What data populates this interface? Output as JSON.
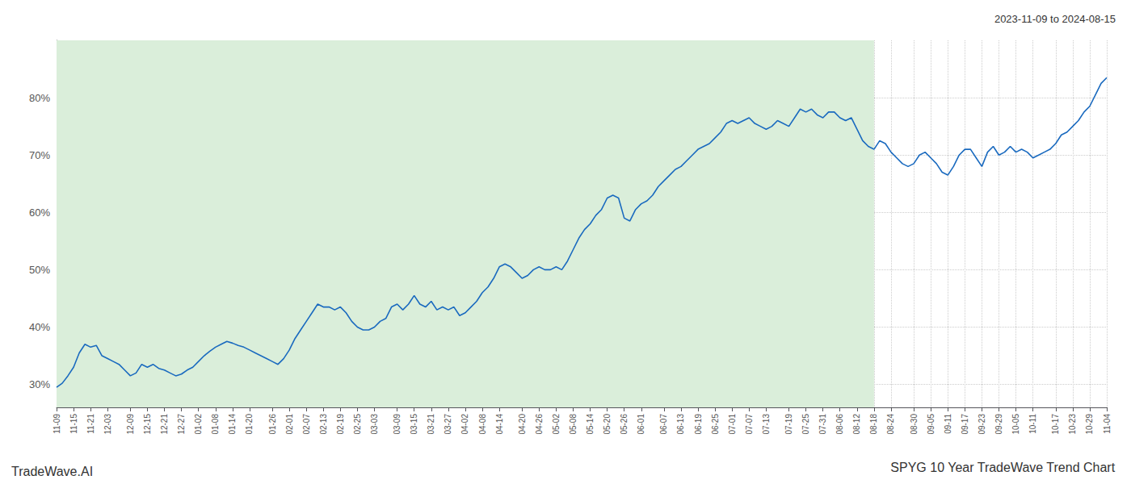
{
  "chart_data": {
    "type": "line",
    "title": "SPYG 10 Year TradeWave Trend Chart",
    "subtitle": "2023-11-09 to 2024-08-15",
    "annotations": [
      "TradeWave.AI"
    ],
    "categories": [
      "11-09",
      null,
      null,
      "11-15",
      null,
      null,
      "11-21",
      null,
      null,
      "12-03",
      null,
      null,
      null,
      "12-09",
      null,
      null,
      "12-15",
      null,
      null,
      "12-21",
      null,
      null,
      "12-27",
      null,
      null,
      "01-02",
      null,
      null,
      "01-08",
      null,
      null,
      "01-14",
      null,
      null,
      "01-20",
      null,
      null,
      null,
      "01-26",
      null,
      null,
      "02-01",
      null,
      null,
      "02-07",
      null,
      null,
      "02-13",
      null,
      null,
      "02-19",
      null,
      null,
      "02-25",
      null,
      null,
      "03-03",
      null,
      null,
      null,
      "03-09",
      null,
      null,
      "03-15",
      null,
      null,
      "03-21",
      null,
      null,
      "03-27",
      null,
      null,
      "04-02",
      null,
      null,
      "04-08",
      null,
      null,
      "04-14",
      null,
      null,
      null,
      "04-20",
      null,
      null,
      "04-26",
      null,
      null,
      "05-02",
      null,
      null,
      "05-08",
      null,
      null,
      "05-14",
      null,
      null,
      "05-20",
      null,
      null,
      "05-26",
      null,
      null,
      "06-01",
      null,
      null,
      null,
      "06-07",
      null,
      null,
      "06-13",
      null,
      null,
      "06-19",
      null,
      null,
      "06-25",
      null,
      null,
      "07-01",
      null,
      null,
      "07-07",
      null,
      null,
      "07-13",
      null,
      null,
      null,
      "07-19",
      null,
      null,
      "07-25",
      null,
      null,
      "07-31",
      null,
      null,
      "08-06",
      null,
      null,
      "08-12",
      null,
      null,
      "08-18",
      null,
      null,
      "08-24",
      null,
      null,
      null,
      "08-30",
      null,
      null,
      "09-05",
      null,
      null,
      "09-11",
      null,
      null,
      "09-17",
      null,
      null,
      "09-23",
      null,
      null,
      "09-29",
      null,
      null,
      "10-05",
      null,
      null,
      "10-11",
      null,
      null,
      null,
      "10-17",
      null,
      null,
      "10-23",
      null,
      null,
      "10-29",
      null,
      null,
      "11-04"
    ],
    "values": [
      29.5,
      30.2,
      31.5,
      33.0,
      35.5,
      37.0,
      36.5,
      36.8,
      35.0,
      34.5,
      34.0,
      33.5,
      32.5,
      31.5,
      32.0,
      33.5,
      33.0,
      33.5,
      32.8,
      32.5,
      32.0,
      31.5,
      31.8,
      32.5,
      33.0,
      34.0,
      35.0,
      35.8,
      36.5,
      37.0,
      37.5,
      37.2,
      36.8,
      36.5,
      36.0,
      35.5,
      35.0,
      34.5,
      34.0,
      33.5,
      34.5,
      36.0,
      38.0,
      39.5,
      41.0,
      42.5,
      44.0,
      43.5,
      43.5,
      43.0,
      43.5,
      42.5,
      41.0,
      40.0,
      39.5,
      39.5,
      40.0,
      41.0,
      41.5,
      43.5,
      44.0,
      43.0,
      44.0,
      45.5,
      44.0,
      43.5,
      44.5,
      43.0,
      43.5,
      43.0,
      43.5,
      42.0,
      42.5,
      43.5,
      44.5,
      46.0,
      47.0,
      48.5,
      50.5,
      51.0,
      50.5,
      49.5,
      48.5,
      49.0,
      50.0,
      50.5,
      50.0,
      50.0,
      50.5,
      50.0,
      51.5,
      53.5,
      55.5,
      57.0,
      58.0,
      59.5,
      60.5,
      62.5,
      63.0,
      62.5,
      59.0,
      58.5,
      60.5,
      61.5,
      62.0,
      63.0,
      64.5,
      65.5,
      66.5,
      67.5,
      68.0,
      69.0,
      70.0,
      71.0,
      71.5,
      72.0,
      73.0,
      74.0,
      75.5,
      76.0,
      75.5,
      76.0,
      76.5,
      75.5,
      75.0,
      74.5,
      75.0,
      76.0,
      75.5,
      75.0,
      76.5,
      78.0,
      77.5,
      78.0,
      77.0,
      76.5,
      77.5,
      77.5,
      76.5,
      76.0,
      76.5,
      74.5,
      72.5,
      71.5,
      71.0,
      72.5,
      72.0,
      70.5,
      69.5,
      68.5,
      68.0,
      68.5,
      70.0,
      70.5,
      69.5,
      68.5,
      67.0,
      66.5,
      68.0,
      70.0,
      71.0,
      71.0,
      69.5,
      68.0,
      70.5,
      71.5,
      70.0,
      70.5,
      71.5,
      70.5,
      71.0,
      70.5,
      69.5,
      70.0,
      70.5,
      71.0,
      72.0,
      73.5,
      74.0,
      75.0,
      76.0,
      77.5,
      78.5,
      80.5,
      82.5,
      83.5
    ],
    "color": "#1a6abf",
    "span": {
      "start": "11-09",
      "end": "08-18",
      "color": "#daeeda"
    },
    "ylim": [
      26,
      90
    ],
    "yticks": [
      {
        "value": 30,
        "label": "30%"
      },
      {
        "value": 40,
        "label": "40%"
      },
      {
        "value": 50,
        "label": "50%"
      },
      {
        "value": 60,
        "label": "60%"
      },
      {
        "value": 70,
        "label": "70%"
      },
      {
        "value": 80,
        "label": "80%"
      }
    ],
    "grid": true
  }
}
